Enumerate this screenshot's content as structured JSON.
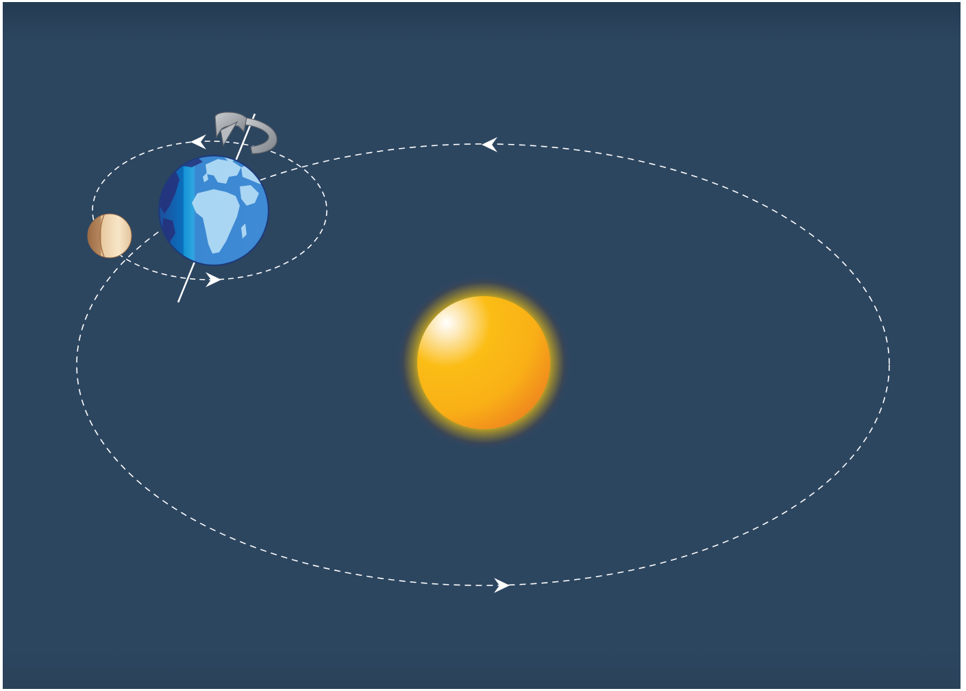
{
  "colors": {
    "space_background": "#2d4660",
    "space_background_top": "#243c52",
    "orbit_path": "#ffffff",
    "sun_core": "#fbbd16",
    "sun_highlight": "#ffffff",
    "sun_shadow": "#f39a1c",
    "sun_corona": "#e8c21a",
    "earth_ocean_dark": "#0a72c0",
    "earth_ocean_light": "#3f90d8",
    "earth_land": "#a8d8f5",
    "earth_outline": "#1e3a7a",
    "moon_light": "#f5e0c0",
    "moon_dark": "#b07f55",
    "rotation_arrow": "#9da2a8",
    "axis_line": "#ffffff"
  },
  "icons": {
    "sun": "sun-icon",
    "earth": "earth-globe-icon",
    "moon": "moon-icon",
    "rotation": "rotation-arrow-icon",
    "orbit_direction": "arrowhead-icon"
  },
  "components": {
    "earth_orbit": "earth-orbit-path",
    "moon_orbit": "moon-orbit-path",
    "earth_axis": "earth-axis"
  }
}
